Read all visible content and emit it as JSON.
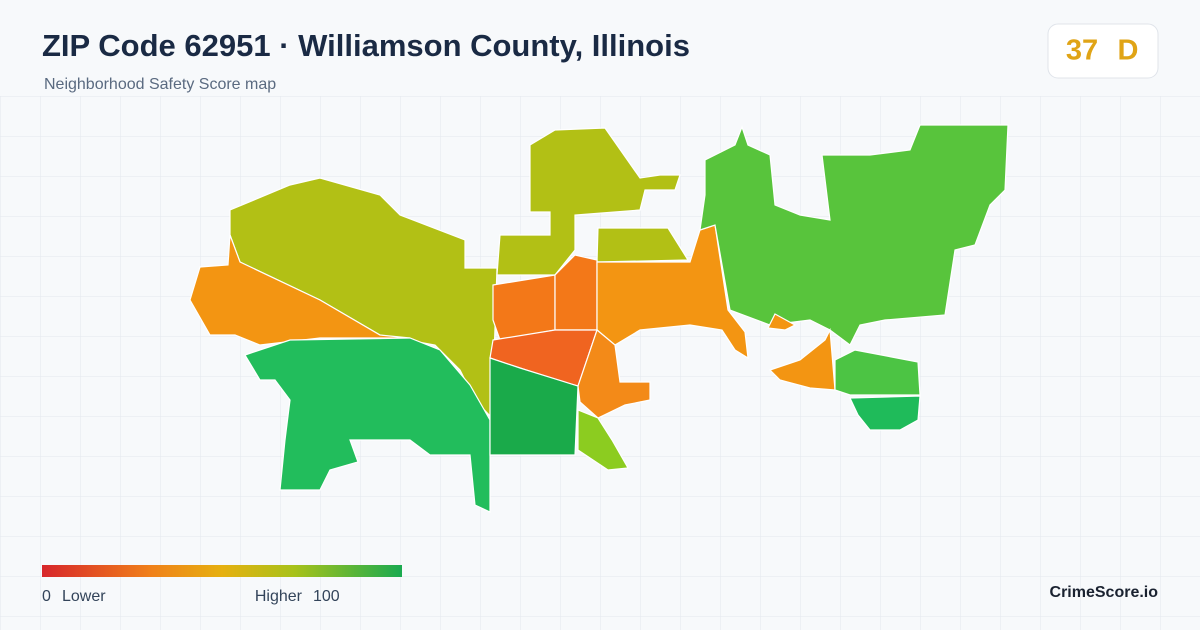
{
  "header": {
    "title": "ZIP Code 62951 · Williamson County, Illinois",
    "subtitle": "Neighborhood Safety Score map"
  },
  "score": {
    "value": 37,
    "grade": "D"
  },
  "legend": {
    "min": 0,
    "min_label": "Lower",
    "max_label": "Higher",
    "max": 100
  },
  "brand": "CrimeScore.io"
}
